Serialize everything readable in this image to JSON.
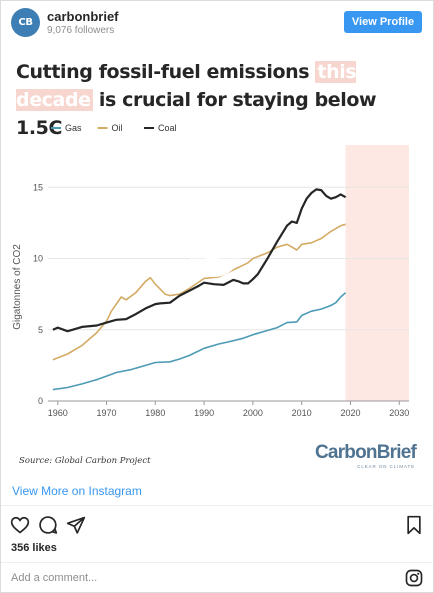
{
  "header": {
    "avatar_text": "CB",
    "username": "carbonbrief",
    "followers": "9,076 followers",
    "view_profile_label": "View Profile"
  },
  "post": {
    "title_part1": "Cutting fossil-fuel emissions ",
    "title_highlight": "this decade",
    "title_part2": " is crucial for staying below 1.5C",
    "source": "Source: Global Carbon Project",
    "brand_logo": "CarbonBrief",
    "brand_tagline": "CLEAR ON CLIMATE",
    "highlight_color": "#f7d6cf",
    "shade_color": "#fde8e3"
  },
  "chart_data": {
    "type": "line",
    "ylabel": "Gigatonnes of CO2",
    "xlim": [
      1958,
      2032
    ],
    "ylim": [
      0,
      16
    ],
    "xticks": [
      1960,
      1970,
      1980,
      1990,
      2000,
      2010,
      2020,
      2030
    ],
    "yticks": [
      0,
      5,
      10,
      15
    ],
    "shaded_region": [
      2019,
      2030
    ],
    "legend_position": "top-left",
    "series": [
      {
        "name": "Gas",
        "color": "#4d9ab5",
        "points": [
          [
            1959,
            0.8
          ],
          [
            1962,
            0.95
          ],
          [
            1965,
            1.2
          ],
          [
            1968,
            1.5
          ],
          [
            1970,
            1.75
          ],
          [
            1972,
            2.0
          ],
          [
            1975,
            2.2
          ],
          [
            1978,
            2.5
          ],
          [
            1980,
            2.7
          ],
          [
            1983,
            2.75
          ],
          [
            1985,
            2.95
          ],
          [
            1987,
            3.2
          ],
          [
            1990,
            3.7
          ],
          [
            1993,
            4.0
          ],
          [
            1995,
            4.15
          ],
          [
            1998,
            4.4
          ],
          [
            2000,
            4.65
          ],
          [
            2002,
            4.85
          ],
          [
            2005,
            5.15
          ],
          [
            2007,
            5.5
          ],
          [
            2009,
            5.55
          ],
          [
            2010,
            6.0
          ],
          [
            2012,
            6.3
          ],
          [
            2014,
            6.45
          ],
          [
            2016,
            6.7
          ],
          [
            2017,
            6.9
          ],
          [
            2018,
            7.3
          ],
          [
            2019,
            7.6
          ]
        ]
      },
      {
        "name": "Oil",
        "color": "#d4ab65",
        "points": [
          [
            1959,
            2.9
          ],
          [
            1962,
            3.3
          ],
          [
            1965,
            3.9
          ],
          [
            1968,
            4.8
          ],
          [
            1970,
            5.6
          ],
          [
            1971,
            6.3
          ],
          [
            1973,
            7.3
          ],
          [
            1974,
            7.1
          ],
          [
            1976,
            7.6
          ],
          [
            1978,
            8.4
          ],
          [
            1979,
            8.65
          ],
          [
            1980,
            8.2
          ],
          [
            1982,
            7.5
          ],
          [
            1983,
            7.4
          ],
          [
            1985,
            7.5
          ],
          [
            1987,
            7.9
          ],
          [
            1990,
            8.6
          ],
          [
            1993,
            8.7
          ],
          [
            1996,
            9.2
          ],
          [
            1999,
            9.7
          ],
          [
            2000,
            10.0
          ],
          [
            2003,
            10.4
          ],
          [
            2005,
            10.8
          ],
          [
            2007,
            11.0
          ],
          [
            2008,
            10.8
          ],
          [
            2009,
            10.6
          ],
          [
            2010,
            11.0
          ],
          [
            2012,
            11.1
          ],
          [
            2014,
            11.4
          ],
          [
            2016,
            11.9
          ],
          [
            2018,
            12.3
          ],
          [
            2019,
            12.4
          ]
        ]
      },
      {
        "name": "Coal",
        "color": "#262626",
        "points": [
          [
            1959,
            5.0
          ],
          [
            1960,
            5.15
          ],
          [
            1962,
            4.9
          ],
          [
            1963,
            5.0
          ],
          [
            1965,
            5.2
          ],
          [
            1968,
            5.3
          ],
          [
            1970,
            5.5
          ],
          [
            1972,
            5.7
          ],
          [
            1974,
            5.75
          ],
          [
            1976,
            6.1
          ],
          [
            1978,
            6.5
          ],
          [
            1980,
            6.8
          ],
          [
            1981,
            6.85
          ],
          [
            1983,
            6.9
          ],
          [
            1985,
            7.4
          ],
          [
            1987,
            7.75
          ],
          [
            1989,
            8.1
          ],
          [
            1990,
            8.3
          ],
          [
            1992,
            8.2
          ],
          [
            1994,
            8.15
          ],
          [
            1996,
            8.5
          ],
          [
            1997,
            8.4
          ],
          [
            1998,
            8.25
          ],
          [
            1999,
            8.25
          ],
          [
            2000,
            8.55
          ],
          [
            2001,
            8.9
          ],
          [
            2003,
            10.0
          ],
          [
            2005,
            11.2
          ],
          [
            2007,
            12.3
          ],
          [
            2008,
            12.6
          ],
          [
            2009,
            12.5
          ],
          [
            2010,
            13.5
          ],
          [
            2011,
            14.2
          ],
          [
            2012,
            14.6
          ],
          [
            2013,
            14.85
          ],
          [
            2014,
            14.8
          ],
          [
            2015,
            14.4
          ],
          [
            2016,
            14.2
          ],
          [
            2017,
            14.3
          ],
          [
            2018,
            14.5
          ],
          [
            2019,
            14.3
          ]
        ]
      }
    ]
  },
  "actions": {
    "view_more": "View More on Instagram",
    "likes": "356 likes",
    "comment_placeholder": "Add a comment..."
  }
}
